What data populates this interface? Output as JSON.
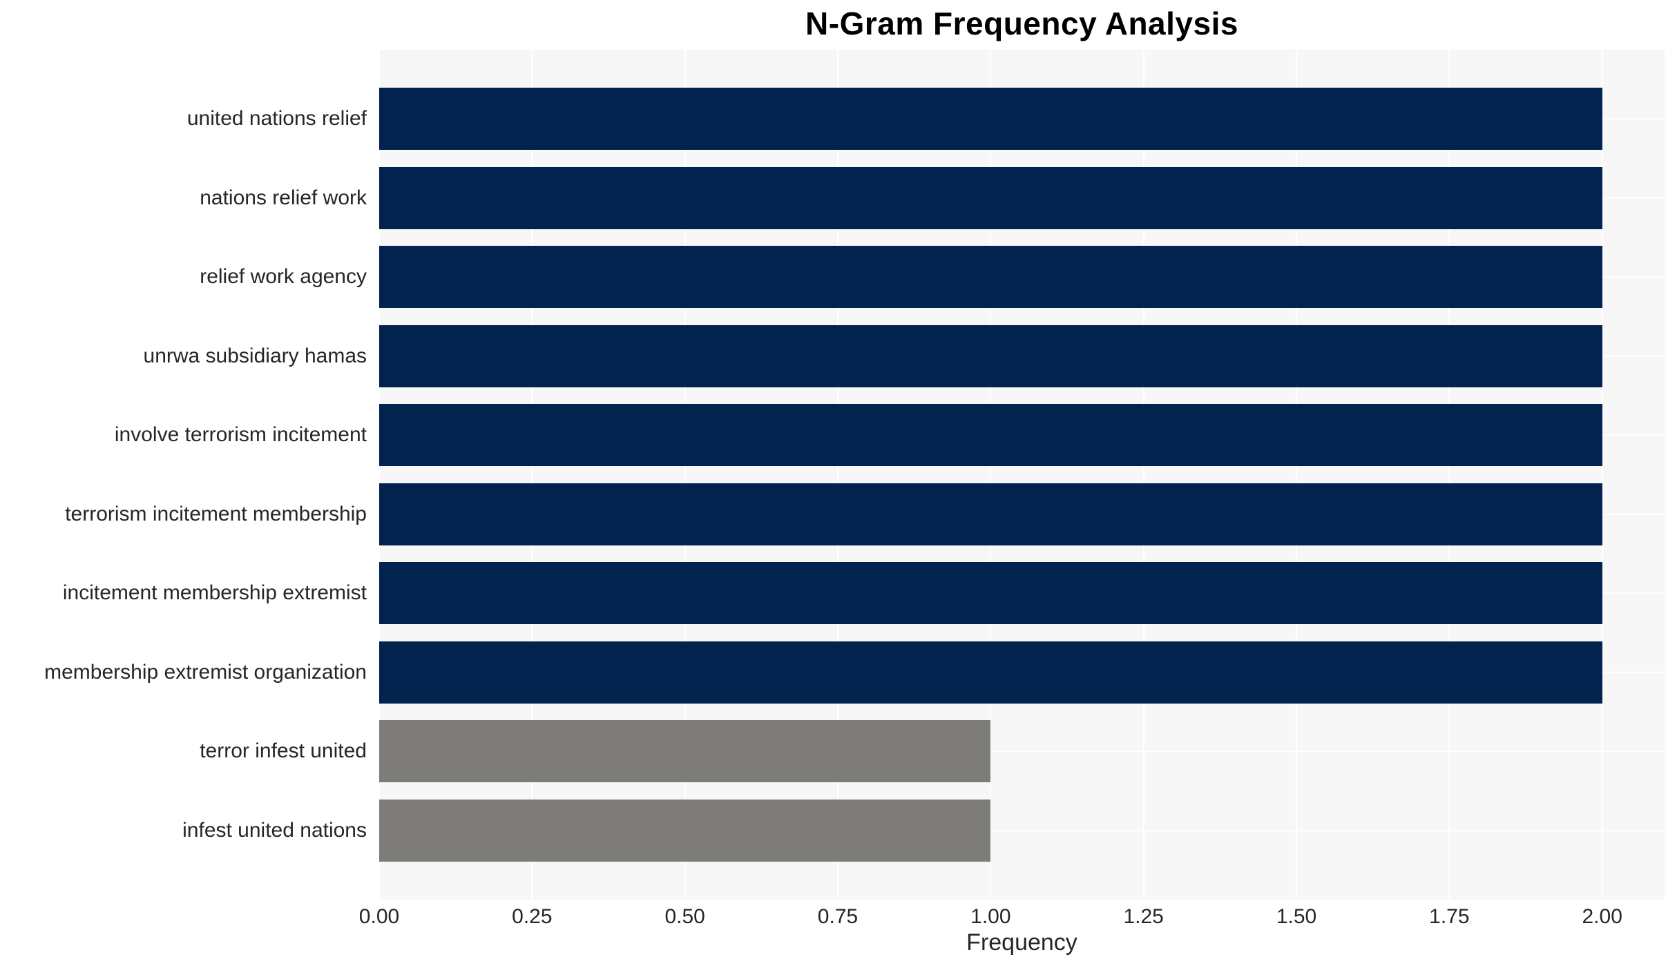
{
  "title": "N-Gram Frequency Analysis",
  "x_axis_label": "Frequency",
  "colors": {
    "primary_bar": "#02234e",
    "secondary_bar": "#7d7c78",
    "plot_background": "#f7f7f7",
    "gridline": "#ffffff",
    "title_text": "#000000",
    "axis_text": "#262626"
  },
  "chart_data": {
    "type": "bar",
    "orientation": "horizontal",
    "title": "N-Gram Frequency Analysis",
    "xlabel": "Frequency",
    "ylabel": "",
    "categories": [
      "united nations relief",
      "nations relief work",
      "relief work agency",
      "unrwa subsidiary hamas",
      "involve terrorism incitement",
      "terrorism incitement membership",
      "incitement membership extremist",
      "membership extremist organization",
      "terror infest united",
      "infest united nations"
    ],
    "values": [
      2.0,
      2.0,
      2.0,
      2.0,
      2.0,
      2.0,
      2.0,
      2.0,
      1.0,
      1.0
    ],
    "bar_colors": [
      "#02234e",
      "#02234e",
      "#02234e",
      "#02234e",
      "#02234e",
      "#02234e",
      "#02234e",
      "#02234e",
      "#7d7c78",
      "#7d7c78"
    ],
    "xlim": [
      0,
      2.102
    ],
    "xticks": [
      0.0,
      0.25,
      0.5,
      0.75,
      1.0,
      1.25,
      1.5,
      1.75,
      2.0
    ],
    "xtick_labels": [
      "0.00",
      "0.25",
      "0.50",
      "0.75",
      "1.00",
      "1.25",
      "1.50",
      "1.75",
      "2.00"
    ],
    "grid": true,
    "legend": false
  }
}
